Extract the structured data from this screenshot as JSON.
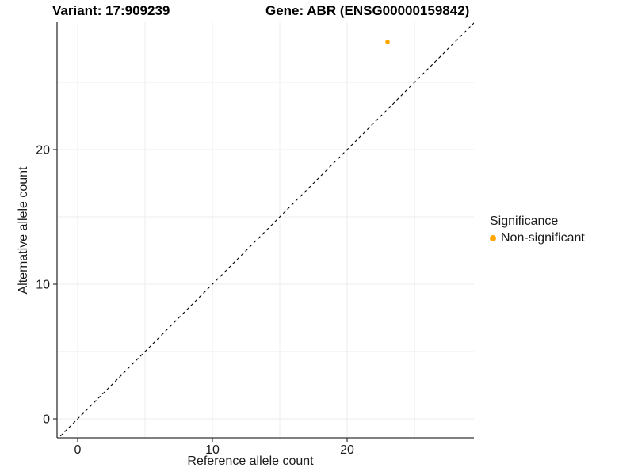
{
  "titles": {
    "variant": "Variant: 17:909239",
    "gene": "Gene: ABR (ENSG00000159842)"
  },
  "legend": {
    "title": "Significance",
    "items": [
      {
        "label": "Non-significant",
        "color": "#FFA500"
      }
    ]
  },
  "chart_data": {
    "type": "scatter",
    "title": "",
    "xlabel": "Reference allele count",
    "ylabel": "Alternative allele count",
    "xlim": [
      -1.53,
      29.41
    ],
    "ylim": [
      -1.41,
      29.47
    ],
    "x_ticks": [
      0,
      10,
      20
    ],
    "y_ticks": [
      0,
      10,
      20
    ],
    "gridlines": [
      0,
      5,
      10,
      15,
      20,
      25
    ],
    "grid_on": true,
    "legend_position": "right",
    "series": [
      {
        "name": "Non-significant",
        "color": "#FFA500",
        "points": [
          {
            "x": 23,
            "y": 28
          }
        ]
      }
    ],
    "reference_line": {
      "slope": 1,
      "intercept": 0,
      "style": "dashed",
      "color": "#000000"
    },
    "colors": {
      "grid": "#ECECEC",
      "axis": "#333333",
      "tick_text": "#1a1a1a"
    }
  }
}
